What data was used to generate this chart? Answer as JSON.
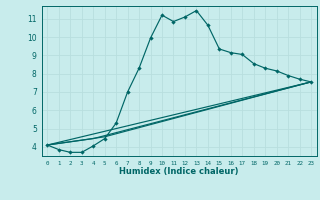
{
  "xlabel": "Humidex (Indice chaleur)",
  "bg_color": "#c8ecec",
  "grid_color": "#b8dede",
  "line_color": "#006666",
  "xlim": [
    -0.5,
    23.5
  ],
  "ylim": [
    3.5,
    11.7
  ],
  "xticks": [
    0,
    1,
    2,
    3,
    4,
    5,
    6,
    7,
    8,
    9,
    10,
    11,
    12,
    13,
    14,
    15,
    16,
    17,
    18,
    19,
    20,
    21,
    22,
    23
  ],
  "yticks": [
    4,
    5,
    6,
    7,
    8,
    9,
    10,
    11
  ],
  "series1_x": [
    0,
    1,
    2,
    3,
    4,
    5,
    6,
    7,
    8,
    9,
    10,
    11,
    12,
    13,
    14,
    15,
    16,
    17,
    18,
    19,
    20,
    21,
    22,
    23
  ],
  "series1_y": [
    4.1,
    3.85,
    3.7,
    3.7,
    4.05,
    4.45,
    5.3,
    7.0,
    8.3,
    9.95,
    11.2,
    10.85,
    11.1,
    11.45,
    10.65,
    9.35,
    9.15,
    9.05,
    8.55,
    8.3,
    8.15,
    7.9,
    7.7,
    7.55
  ],
  "series2_x": [
    0,
    23
  ],
  "series2_y": [
    4.1,
    7.55
  ],
  "series3_x": [
    0,
    4,
    23
  ],
  "series3_y": [
    4.1,
    4.45,
    7.55
  ],
  "series4_x": [
    0,
    5,
    23
  ],
  "series4_y": [
    4.1,
    4.55,
    7.55
  ],
  "xtick_fontsize": 4.2,
  "ytick_fontsize": 5.5,
  "xlabel_fontsize": 6.0,
  "marker_size": 2.2,
  "line_width": 0.85
}
